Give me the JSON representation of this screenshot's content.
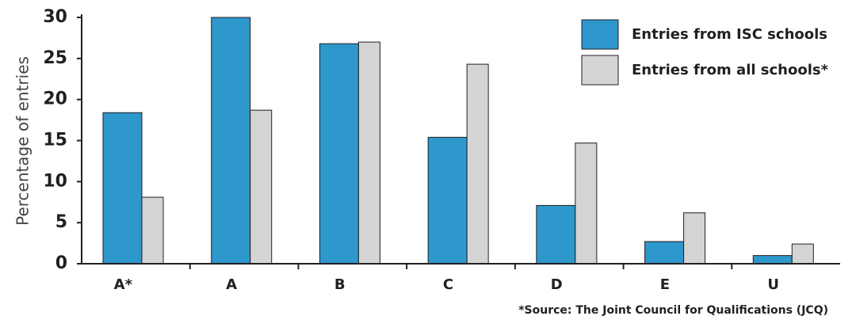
{
  "chart_data": {
    "type": "bar",
    "y_label": "Percentage of entries",
    "categories": [
      "A*",
      "A",
      "B",
      "C",
      "D",
      "E",
      "U"
    ],
    "series": [
      {
        "name": "Entries from ISC schools",
        "color": "#2e97cb",
        "values": [
          18.4,
          30,
          26.8,
          15.4,
          7.1,
          2.7,
          1.0
        ]
      },
      {
        "name": "Entries from all schools*",
        "color": "#d4d4d4",
        "values": [
          8.1,
          18.7,
          27,
          24.3,
          14.7,
          6.2,
          2.4
        ]
      }
    ],
    "ylim": [
      0,
      30
    ],
    "yticks": [
      0,
      5,
      10,
      15,
      20,
      25,
      30
    ],
    "grid": false,
    "legend": "upper right",
    "note": "*Source: The Joint Council for Qualifications (JCQ)"
  }
}
